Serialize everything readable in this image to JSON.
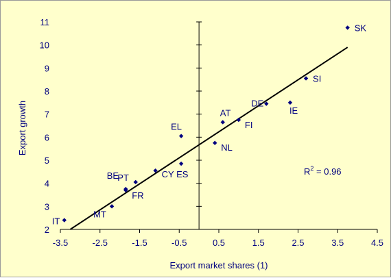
{
  "chart_data": {
    "type": "scatter",
    "xlabel": "Export market shares (1)",
    "ylabel": "Export growth",
    "xlim": [
      -3.5,
      4.5
    ],
    "ylim": [
      2,
      11
    ],
    "x_ticks": [
      "-3.5",
      "-2.5",
      "-1.5",
      "-0.5",
      "0.5",
      "1.5",
      "2.5",
      "3.5",
      "4.5"
    ],
    "y_ticks": [
      "2",
      "3",
      "4",
      "5",
      "6",
      "7",
      "8",
      "9",
      "10",
      "11"
    ],
    "points": [
      {
        "label": "IT",
        "x": -3.4,
        "y": 2.4
      },
      {
        "label": "MT",
        "x": -2.2,
        "y": 3.0
      },
      {
        "label": "FR",
        "x": -1.85,
        "y": 3.7
      },
      {
        "label": "BE",
        "x": -1.6,
        "y": 4.05
      },
      {
        "label": "PT",
        "x": -1.85,
        "y": 3.75
      },
      {
        "label": "CY",
        "x": -1.1,
        "y": 4.55
      },
      {
        "label": "ES",
        "x": -0.45,
        "y": 4.85
      },
      {
        "label": "EL",
        "x": -0.45,
        "y": 6.05
      },
      {
        "label": "NL",
        "x": 0.4,
        "y": 5.75
      },
      {
        "label": "AT",
        "x": 0.6,
        "y": 6.65
      },
      {
        "label": "FI",
        "x": 1.0,
        "y": 6.75
      },
      {
        "label": "DE",
        "x": 1.7,
        "y": 7.45
      },
      {
        "label": "IE",
        "x": 2.3,
        "y": 7.5
      },
      {
        "label": "SI",
        "x": 2.7,
        "y": 8.55
      },
      {
        "label": "SK",
        "x": 3.75,
        "y": 10.75
      }
    ],
    "trendline": {
      "x": [
        -3.25,
        3.75
      ],
      "y": [
        2.0,
        9.9
      ]
    },
    "r2_label": "R",
    "r2_sup": "2",
    "r2_value": " = 0.96",
    "grid": false,
    "legend": "none",
    "colors": {
      "marker": "#000080",
      "line": "#000000",
      "background": "#ffffcc",
      "text": "#000080"
    }
  }
}
